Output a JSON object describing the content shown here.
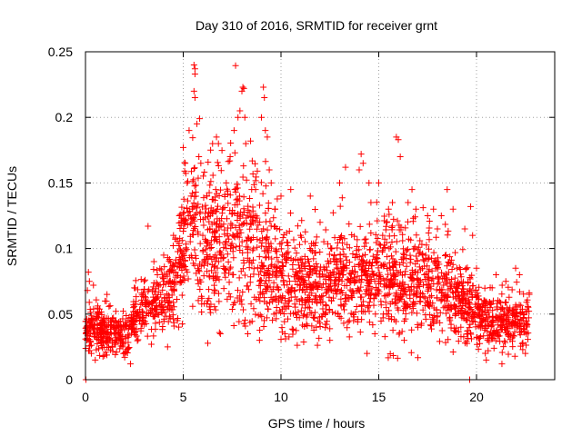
{
  "chart_data": {
    "type": "scatter",
    "title": "Day 310 of 2016, SRMTID for receiver grnt",
    "xlabel": "GPS time / hours",
    "ylabel": "SRMTID / TECUs",
    "xlim": [
      0,
      24
    ],
    "ylim": [
      0,
      0.25
    ],
    "xticks": [
      0,
      5,
      10,
      15,
      20
    ],
    "xtick_labels": [
      "0",
      "5",
      "10",
      "15",
      "20"
    ],
    "yticks": [
      0,
      0.05,
      0.1,
      0.15,
      0.2,
      0.25
    ],
    "ytick_labels": [
      "0",
      "0.05",
      "0.1",
      "0.15",
      "0.2",
      "0.25"
    ],
    "grid": true,
    "series_color": "#ff0000",
    "axis_color": "#000000",
    "grid_color": "#a0a0a0",
    "marker": "plus",
    "trend": [
      {
        "x": 0.0,
        "y": 0.035,
        "spread": 0.015
      },
      {
        "x": 0.5,
        "y": 0.04,
        "spread": 0.018
      },
      {
        "x": 1.0,
        "y": 0.035,
        "spread": 0.015
      },
      {
        "x": 2.0,
        "y": 0.033,
        "spread": 0.013
      },
      {
        "x": 2.5,
        "y": 0.045,
        "spread": 0.018
      },
      {
        "x": 3.0,
        "y": 0.055,
        "spread": 0.02
      },
      {
        "x": 4.0,
        "y": 0.06,
        "spread": 0.022
      },
      {
        "x": 4.7,
        "y": 0.075,
        "spread": 0.03
      },
      {
        "x": 5.0,
        "y": 0.1,
        "spread": 0.045
      },
      {
        "x": 5.5,
        "y": 0.12,
        "spread": 0.055
      },
      {
        "x": 6.0,
        "y": 0.1,
        "spread": 0.05
      },
      {
        "x": 7.0,
        "y": 0.11,
        "spread": 0.05
      },
      {
        "x": 8.0,
        "y": 0.11,
        "spread": 0.06
      },
      {
        "x": 9.0,
        "y": 0.1,
        "spread": 0.055
      },
      {
        "x": 10.0,
        "y": 0.08,
        "spread": 0.035
      },
      {
        "x": 11.0,
        "y": 0.075,
        "spread": 0.035
      },
      {
        "x": 12.0,
        "y": 0.07,
        "spread": 0.035
      },
      {
        "x": 13.0,
        "y": 0.08,
        "spread": 0.035
      },
      {
        "x": 14.0,
        "y": 0.075,
        "spread": 0.035
      },
      {
        "x": 15.0,
        "y": 0.08,
        "spread": 0.04
      },
      {
        "x": 16.0,
        "y": 0.08,
        "spread": 0.045
      },
      {
        "x": 17.0,
        "y": 0.075,
        "spread": 0.035
      },
      {
        "x": 18.0,
        "y": 0.07,
        "spread": 0.035
      },
      {
        "x": 19.0,
        "y": 0.06,
        "spread": 0.03
      },
      {
        "x": 19.5,
        "y": 0.055,
        "spread": 0.025
      },
      {
        "x": 20.0,
        "y": 0.05,
        "spread": 0.02
      },
      {
        "x": 21.0,
        "y": 0.045,
        "spread": 0.018
      },
      {
        "x": 22.0,
        "y": 0.045,
        "spread": 0.02
      },
      {
        "x": 22.7,
        "y": 0.045,
        "spread": 0.02
      }
    ],
    "points": [
      {
        "x": 0.02,
        "y": 0.0
      },
      {
        "x": 0.05,
        "y": 0.04
      },
      {
        "x": 0.1,
        "y": 0.068
      },
      {
        "x": 0.15,
        "y": 0.082
      },
      {
        "x": 0.2,
        "y": 0.075
      },
      {
        "x": 0.3,
        "y": 0.02
      },
      {
        "x": 0.5,
        "y": 0.015
      },
      {
        "x": 0.7,
        "y": 0.05
      },
      {
        "x": 1.0,
        "y": 0.06
      },
      {
        "x": 1.1,
        "y": 0.065
      },
      {
        "x": 1.5,
        "y": 0.045
      },
      {
        "x": 2.0,
        "y": 0.02
      },
      {
        "x": 2.3,
        "y": 0.012
      },
      {
        "x": 2.5,
        "y": 0.07
      },
      {
        "x": 3.0,
        "y": 0.075
      },
      {
        "x": 3.2,
        "y": 0.117
      },
      {
        "x": 3.5,
        "y": 0.09
      },
      {
        "x": 4.0,
        "y": 0.095
      },
      {
        "x": 4.2,
        "y": 0.025
      },
      {
        "x": 4.5,
        "y": 0.11
      },
      {
        "x": 4.6,
        "y": 0.108
      },
      {
        "x": 4.8,
        "y": 0.125
      },
      {
        "x": 5.0,
        "y": 0.177
      },
      {
        "x": 5.1,
        "y": 0.165
      },
      {
        "x": 5.2,
        "y": 0.15
      },
      {
        "x": 5.3,
        "y": 0.19
      },
      {
        "x": 5.4,
        "y": 0.14
      },
      {
        "x": 5.55,
        "y": 0.24
      },
      {
        "x": 5.6,
        "y": 0.237
      },
      {
        "x": 5.6,
        "y": 0.233
      },
      {
        "x": 5.55,
        "y": 0.22
      },
      {
        "x": 5.6,
        "y": 0.215
      },
      {
        "x": 5.7,
        "y": 0.195
      },
      {
        "x": 5.8,
        "y": 0.17
      },
      {
        "x": 5.9,
        "y": 0.165
      },
      {
        "x": 6.0,
        "y": 0.11
      },
      {
        "x": 6.2,
        "y": 0.14
      },
      {
        "x": 6.4,
        "y": 0.175
      },
      {
        "x": 6.5,
        "y": 0.18
      },
      {
        "x": 6.7,
        "y": 0.185
      },
      {
        "x": 6.8,
        "y": 0.18
      },
      {
        "x": 6.9,
        "y": 0.035
      },
      {
        "x": 7.0,
        "y": 0.13
      },
      {
        "x": 7.2,
        "y": 0.15
      },
      {
        "x": 7.4,
        "y": 0.17
      },
      {
        "x": 7.6,
        "y": 0.19
      },
      {
        "x": 7.8,
        "y": 0.2
      },
      {
        "x": 7.9,
        "y": 0.205
      },
      {
        "x": 8.0,
        "y": 0.22
      },
      {
        "x": 8.05,
        "y": 0.223
      },
      {
        "x": 8.1,
        "y": 0.222
      },
      {
        "x": 8.15,
        "y": 0.2
      },
      {
        "x": 8.2,
        "y": 0.18
      },
      {
        "x": 8.3,
        "y": 0.035
      },
      {
        "x": 8.5,
        "y": 0.145
      },
      {
        "x": 8.7,
        "y": 0.145
      },
      {
        "x": 8.9,
        "y": 0.03
      },
      {
        "x": 9.0,
        "y": 0.2
      },
      {
        "x": 9.1,
        "y": 0.223
      },
      {
        "x": 9.15,
        "y": 0.215
      },
      {
        "x": 9.2,
        "y": 0.19
      },
      {
        "x": 9.3,
        "y": 0.185
      },
      {
        "x": 9.4,
        "y": 0.16
      },
      {
        "x": 9.5,
        "y": 0.15
      },
      {
        "x": 9.7,
        "y": 0.13
      },
      {
        "x": 10.0,
        "y": 0.14
      },
      {
        "x": 10.2,
        "y": 0.035
      },
      {
        "x": 10.5,
        "y": 0.145
      },
      {
        "x": 11.0,
        "y": 0.11
      },
      {
        "x": 11.5,
        "y": 0.14
      },
      {
        "x": 12.0,
        "y": 0.12
      },
      {
        "x": 12.5,
        "y": 0.03
      },
      {
        "x": 13.0,
        "y": 0.15
      },
      {
        "x": 13.3,
        "y": 0.162
      },
      {
        "x": 13.5,
        "y": 0.045
      },
      {
        "x": 14.0,
        "y": 0.16
      },
      {
        "x": 14.1,
        "y": 0.172
      },
      {
        "x": 14.2,
        "y": 0.165
      },
      {
        "x": 14.4,
        "y": 0.02
      },
      {
        "x": 14.5,
        "y": 0.15
      },
      {
        "x": 14.6,
        "y": 0.135
      },
      {
        "x": 14.8,
        "y": 0.035
      },
      {
        "x": 15.0,
        "y": 0.15
      },
      {
        "x": 15.2,
        "y": 0.11
      },
      {
        "x": 15.5,
        "y": 0.13
      },
      {
        "x": 15.7,
        "y": 0.135
      },
      {
        "x": 15.9,
        "y": 0.185
      },
      {
        "x": 16.0,
        "y": 0.183
      },
      {
        "x": 16.1,
        "y": 0.17
      },
      {
        "x": 16.3,
        "y": 0.03
      },
      {
        "x": 16.5,
        "y": 0.135
      },
      {
        "x": 16.7,
        "y": 0.145
      },
      {
        "x": 16.9,
        "y": 0.13
      },
      {
        "x": 17.0,
        "y": 0.04
      },
      {
        "x": 17.5,
        "y": 0.125
      },
      {
        "x": 17.8,
        "y": 0.13
      },
      {
        "x": 18.0,
        "y": 0.115
      },
      {
        "x": 18.2,
        "y": 0.125
      },
      {
        "x": 18.5,
        "y": 0.145
      },
      {
        "x": 18.8,
        "y": 0.13
      },
      {
        "x": 19.0,
        "y": 0.085
      },
      {
        "x": 19.2,
        "y": 0.04
      },
      {
        "x": 19.4,
        "y": 0.115
      },
      {
        "x": 19.65,
        "y": 0.0
      },
      {
        "x": 19.7,
        "y": 0.132
      },
      {
        "x": 19.8,
        "y": 0.11
      },
      {
        "x": 20.0,
        "y": 0.085
      },
      {
        "x": 20.3,
        "y": 0.055
      },
      {
        "x": 20.5,
        "y": 0.015
      },
      {
        "x": 20.8,
        "y": 0.07
      },
      {
        "x": 21.0,
        "y": 0.08
      },
      {
        "x": 21.3,
        "y": 0.012
      },
      {
        "x": 21.5,
        "y": 0.075
      },
      {
        "x": 22.0,
        "y": 0.085
      },
      {
        "x": 22.2,
        "y": 0.08
      },
      {
        "x": 22.5,
        "y": 0.02
      },
      {
        "x": 22.7,
        "y": 0.065
      }
    ]
  }
}
